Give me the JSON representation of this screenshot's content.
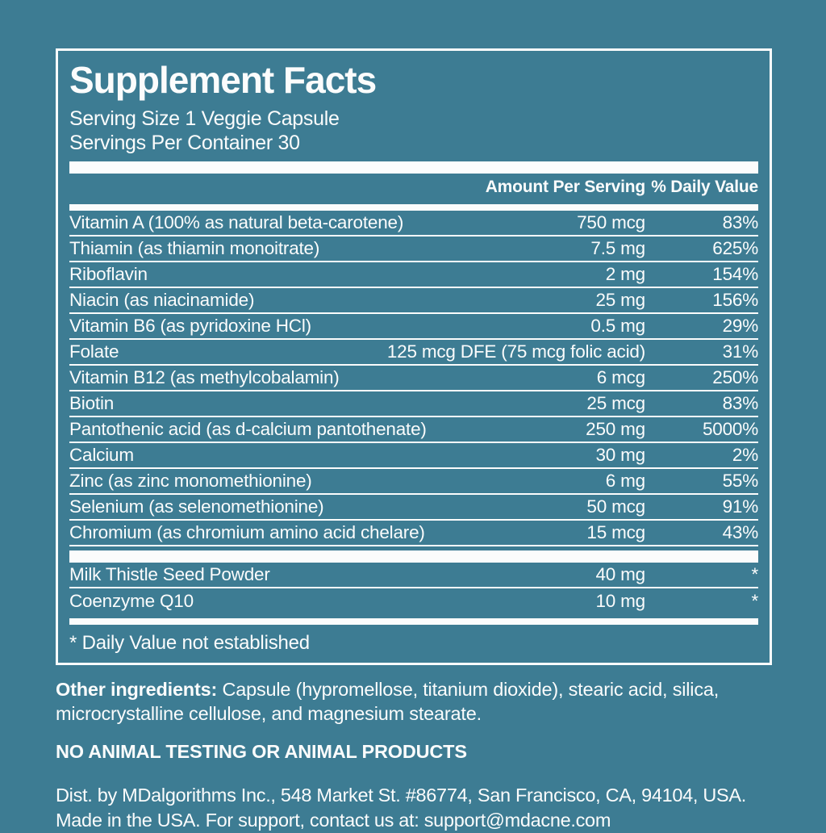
{
  "colors": {
    "background": "#3D7C93",
    "text": "#FBFCFC"
  },
  "label": {
    "title": "Supplement Facts",
    "serving_size": "Serving Size 1 Veggie Capsule",
    "servings_per_container": "Servings Per Container 30",
    "columns": {
      "amount": "Amount Per Serving",
      "dv": "% Daily Value"
    },
    "rows": [
      {
        "name": "Vitamin A (100% as natural beta-carotene)",
        "amount": "750 mcg",
        "dv": "83%"
      },
      {
        "name": "Thiamin (as thiamin monoitrate)",
        "amount": "7.5 mg",
        "dv": "625%"
      },
      {
        "name": "Riboflavin",
        "amount": "2 mg",
        "dv": "154%"
      },
      {
        "name": "Niacin (as niacinamide)",
        "amount": "25 mg",
        "dv": "156%"
      },
      {
        "name": "Vitamin B6 (as pyridoxine HCl)",
        "amount": "0.5 mg",
        "dv": "29%"
      },
      {
        "name": "Folate",
        "amount": "125 mcg DFE (75 mcg folic acid)",
        "dv": "31%"
      },
      {
        "name": "Vitamin B12 (as methylcobalamin)",
        "amount": "6 mcg",
        "dv": "250%"
      },
      {
        "name": "Biotin",
        "amount": "25 mcg",
        "dv": "83%"
      },
      {
        "name": "Pantothenic acid (as d-calcium pantothenate)",
        "amount": "250 mg",
        "dv": "5000%"
      },
      {
        "name": "Calcium",
        "amount": "30 mg",
        "dv": "2%"
      },
      {
        "name": "Zinc (as zinc monomethionine)",
        "amount": "6 mg",
        "dv": "55%"
      },
      {
        "name": "Selenium (as selenomethionine)",
        "amount": "50 mcg",
        "dv": "91%"
      },
      {
        "name": "Chromium (as chromium amino acid chelare)",
        "amount": "15 mcg",
        "dv": "43%"
      }
    ],
    "extra_rows": [
      {
        "name": "Milk Thistle Seed Powder",
        "amount": "40 mg",
        "dv": "*"
      },
      {
        "name": "Coenzyme Q10",
        "amount": "10 mg",
        "dv": "*"
      }
    ],
    "footnote": "* Daily Value not established"
  },
  "footer": {
    "other_ingredients_label": "Other ingredients:",
    "other_ingredients_text": "Capsule (hypromellose, titanium dioxide), stearic acid, silica, microcrystalline cellulose, and magnesium stearate.",
    "no_animal": "NO ANIMAL TESTING OR ANIMAL PRODUCTS",
    "distributor": "Dist. by MDalgorithms Inc., 548 Market St. #86774, San Francisco, CA, 94104, USA. Made in the USA. For support, contact us at: support@mdacne.com"
  }
}
